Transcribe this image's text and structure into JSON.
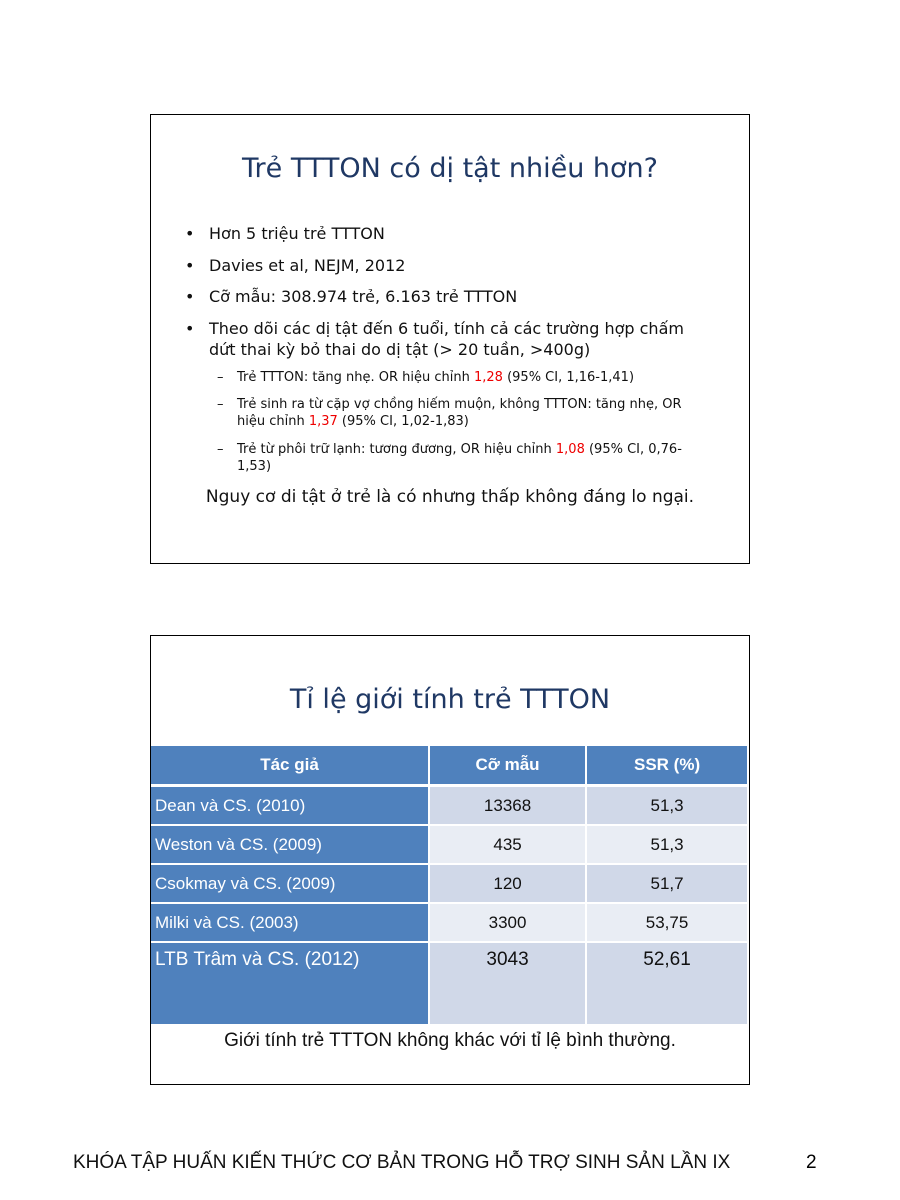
{
  "slide1": {
    "title": "Trẻ TTTON có dị tật nhiều hơn?",
    "bullets": [
      "Hơn 5 triệu trẻ TTTON",
      "Davies et al, NEJM, 2012",
      "Cỡ mẫu: 308.974 trẻ, 6.163 trẻ TTTON",
      "Theo dõi các dị tật đến 6 tuổi, tính cả các trường hợp chấm dứt thai kỳ bỏ thai do dị tật (> 20 tuần, >400g)"
    ],
    "sub": [
      {
        "pre": "Trẻ TTTON: tăng nhẹ. OR hiệu chỉnh ",
        "val": "1,28",
        "post": " (95% CI, 1,16-1,41)"
      },
      {
        "pre": "Trẻ sinh ra từ cặp vợ chồng hiếm muộn, không TTTON: tăng nhẹ, OR hiệu chỉnh ",
        "val": "1,37",
        "post": " (95% CI, 1,02-1,83)"
      },
      {
        "pre": "Trẻ từ phôi trữ lạnh: tương đương, OR hiệu chỉnh ",
        "val": "1,08",
        "post": " (95% CI, 0,76-1,53)"
      }
    ],
    "conclusion": "Nguy cơ di tật ở trẻ là có nhưng thấp không đáng lo ngại."
  },
  "slide2": {
    "title": "Tỉ lệ giới tính trẻ TTTON",
    "headers": [
      "Tác giả",
      "Cỡ mẫu",
      "SSR (%)"
    ],
    "rows": [
      [
        "Dean và CS. (2010)",
        "13368",
        "51,3"
      ],
      [
        "Weston và CS. (2009)",
        "435",
        "51,3"
      ],
      [
        "Csokmay và CS. (2009)",
        "120",
        "51,7"
      ],
      [
        "Milki và CS. (2003)",
        "3300",
        "53,75"
      ],
      [
        "LTB Trâm và CS. (2012)",
        "3043",
        "52,61"
      ]
    ],
    "conclusion": "Giới tính trẻ TTTON không khác với tỉ lệ bình thường."
  },
  "footer": {
    "text": "KHÓA TẬP HUẤN KIẾN THỨC CƠ BẢN TRONG HỖ TRỢ SINH SẢN LẦN IX",
    "page": "2"
  },
  "colors": {
    "title": "#1f3864",
    "table_header": "#4f81bd",
    "highlight": "#ee0000"
  }
}
